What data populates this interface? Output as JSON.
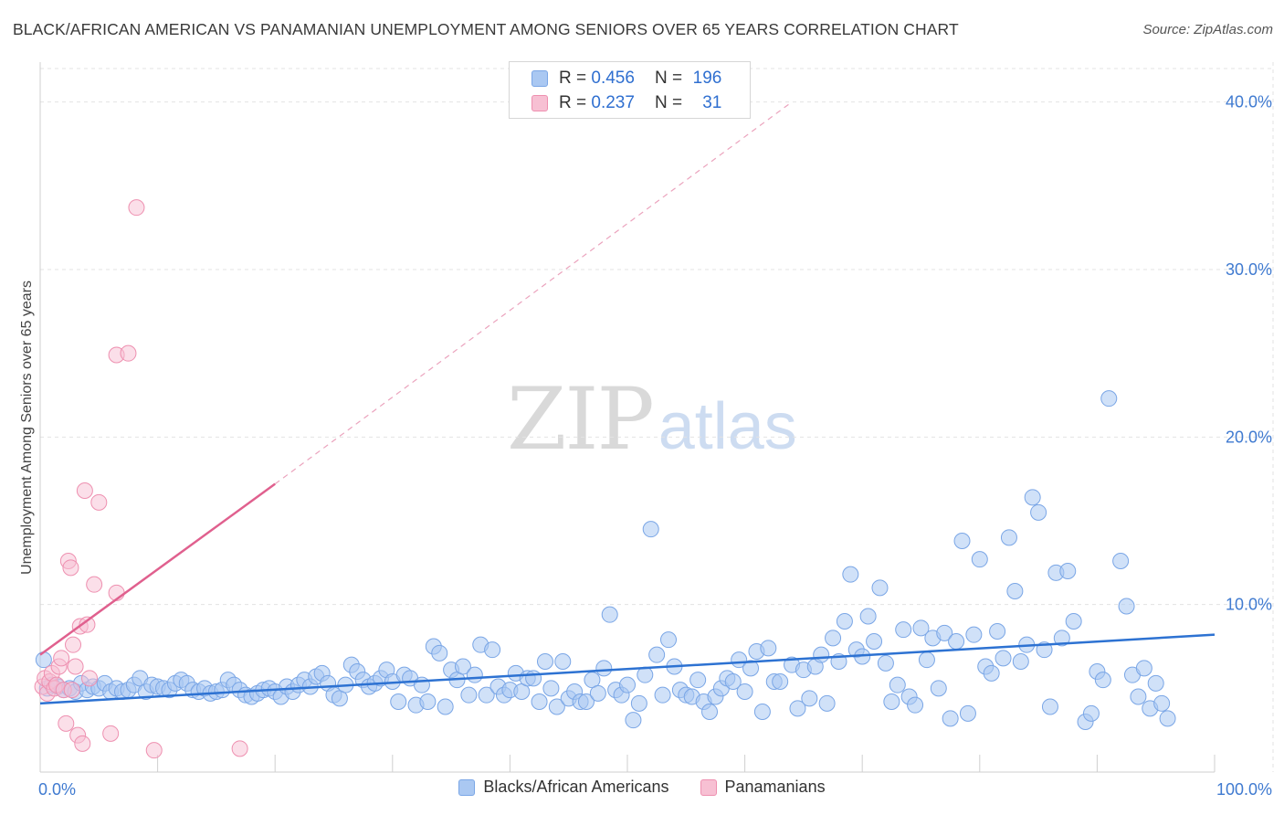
{
  "title": "BLACK/AFRICAN AMERICAN VS PANAMANIAN UNEMPLOYMENT AMONG SENIORS OVER 65 YEARS CORRELATION CHART",
  "source": "Source: ZipAtlas.com",
  "watermark": {
    "zip": "ZIP",
    "atlas": "atlas"
  },
  "stats": [
    {
      "r_label": "R =",
      "r_value": "0.456",
      "n_label": "N =",
      "n_value": "196"
    },
    {
      "r_label": "R =",
      "r_value": "0.237",
      "n_label": "N =",
      "n_value": "31"
    }
  ],
  "colors": {
    "blue_fill": "#aac8f2",
    "blue_stroke": "#7aa6e6",
    "blue_line": "#2d72d2",
    "pink_fill": "#f7c0d3",
    "pink_stroke": "#ee90b0",
    "pink_line": "#e0608e",
    "grid": "#e3e3e3",
    "axis_text": "#3f7ad0"
  },
  "chart_data": {
    "type": "scatter",
    "title": "BLACK/AFRICAN AMERICAN VS PANAMANIAN UNEMPLOYMENT AMONG SENIORS OVER 65 YEARS CORRELATION CHART",
    "xlabel": "",
    "ylabel": "Unemployment Among Seniors over 65 years",
    "xlim": [
      0,
      100
    ],
    "ylim": [
      0,
      42
    ],
    "x_tick_labels": [
      "0.0%",
      "100.0%"
    ],
    "y_ticks": [
      10,
      20,
      30,
      40
    ],
    "y_tick_labels": [
      "10.0%",
      "20.0%",
      "30.0%",
      "40.0%"
    ],
    "grid": true,
    "legend_position": "bottom",
    "series": [
      {
        "name": "Blacks/African Americans",
        "color": "#aac8f2",
        "trend": {
          "x": [
            0,
            100
          ],
          "y": [
            4.1,
            8.2
          ],
          "style": "solid"
        },
        "points": [
          [
            0.3,
            6.7
          ],
          [
            0.6,
            5.0
          ],
          [
            1,
            5.2
          ],
          [
            1.5,
            5.1
          ],
          [
            2,
            4.9
          ],
          [
            2.5,
            5.0
          ],
          [
            3,
            4.8
          ],
          [
            3.5,
            5.3
          ],
          [
            4,
            4.9
          ],
          [
            4.5,
            5.1
          ],
          [
            5,
            5.0
          ],
          [
            5.5,
            5.3
          ],
          [
            6,
            4.8
          ],
          [
            6.5,
            5.0
          ],
          [
            7,
            4.8
          ],
          [
            7.5,
            4.9
          ],
          [
            8,
            5.2
          ],
          [
            8.5,
            5.6
          ],
          [
            9,
            4.8
          ],
          [
            9.5,
            5.2
          ],
          [
            10,
            5.1
          ],
          [
            10.5,
            5.0
          ],
          [
            11,
            4.9
          ],
          [
            11.5,
            5.3
          ],
          [
            12,
            5.5
          ],
          [
            12.5,
            5.3
          ],
          [
            13,
            4.9
          ],
          [
            13.5,
            4.8
          ],
          [
            14,
            5.0
          ],
          [
            14.5,
            4.7
          ],
          [
            15,
            4.8
          ],
          [
            15.5,
            4.9
          ],
          [
            16,
            5.5
          ],
          [
            16.5,
            5.2
          ],
          [
            17,
            4.9
          ],
          [
            17.5,
            4.6
          ],
          [
            18,
            4.5
          ],
          [
            18.5,
            4.7
          ],
          [
            19,
            4.9
          ],
          [
            19.5,
            5.0
          ],
          [
            20,
            4.8
          ],
          [
            20.5,
            4.5
          ],
          [
            21,
            5.1
          ],
          [
            21.5,
            4.8
          ],
          [
            22,
            5.2
          ],
          [
            22.5,
            5.5
          ],
          [
            23,
            5.1
          ],
          [
            23.5,
            5.7
          ],
          [
            24,
            5.9
          ],
          [
            24.5,
            5.3
          ],
          [
            25,
            4.6
          ],
          [
            25.5,
            4.4
          ],
          [
            26,
            5.2
          ],
          [
            26.5,
            6.4
          ],
          [
            27,
            6.0
          ],
          [
            27.5,
            5.5
          ],
          [
            28,
            5.1
          ],
          [
            28.5,
            5.3
          ],
          [
            29,
            5.6
          ],
          [
            29.5,
            6.1
          ],
          [
            30,
            5.4
          ],
          [
            30.5,
            4.2
          ],
          [
            31,
            5.8
          ],
          [
            31.5,
            5.6
          ],
          [
            32,
            4.0
          ],
          [
            32.5,
            5.2
          ],
          [
            33,
            4.2
          ],
          [
            33.5,
            7.5
          ],
          [
            34,
            7.1
          ],
          [
            34.5,
            3.9
          ],
          [
            35,
            6.1
          ],
          [
            35.5,
            5.5
          ],
          [
            36,
            6.3
          ],
          [
            36.5,
            4.6
          ],
          [
            37,
            5.8
          ],
          [
            37.5,
            7.6
          ],
          [
            38,
            4.6
          ],
          [
            38.5,
            7.3
          ],
          [
            39,
            5.1
          ],
          [
            39.5,
            4.6
          ],
          [
            40,
            4.9
          ],
          [
            40.5,
            5.9
          ],
          [
            41,
            4.8
          ],
          [
            41.5,
            5.6
          ],
          [
            42,
            5.6
          ],
          [
            42.5,
            4.2
          ],
          [
            43,
            6.6
          ],
          [
            43.5,
            5.0
          ],
          [
            44,
            3.9
          ],
          [
            44.5,
            6.6
          ],
          [
            45,
            4.4
          ],
          [
            45.5,
            4.8
          ],
          [
            46,
            4.2
          ],
          [
            46.5,
            4.2
          ],
          [
            47,
            5.5
          ],
          [
            47.5,
            4.7
          ],
          [
            48,
            6.2
          ],
          [
            48.5,
            9.4
          ],
          [
            49,
            4.9
          ],
          [
            49.5,
            4.6
          ],
          [
            50,
            5.2
          ],
          [
            50.5,
            3.1
          ],
          [
            51,
            4.1
          ],
          [
            51.5,
            5.8
          ],
          [
            52,
            14.5
          ],
          [
            52.5,
            7.0
          ],
          [
            53,
            4.6
          ],
          [
            53.5,
            7.9
          ],
          [
            54,
            6.3
          ],
          [
            54.5,
            4.9
          ],
          [
            55,
            4.6
          ],
          [
            55.5,
            4.5
          ],
          [
            56,
            5.5
          ],
          [
            56.5,
            4.2
          ],
          [
            57,
            3.6
          ],
          [
            57.5,
            4.5
          ],
          [
            58,
            5.0
          ],
          [
            58.5,
            5.6
          ],
          [
            59,
            5.4
          ],
          [
            59.5,
            6.7
          ],
          [
            60,
            4.8
          ],
          [
            60.5,
            6.2
          ],
          [
            61,
            7.2
          ],
          [
            61.5,
            3.6
          ],
          [
            62,
            7.4
          ],
          [
            62.5,
            5.4
          ],
          [
            63,
            5.4
          ],
          [
            64,
            6.4
          ],
          [
            64.5,
            3.8
          ],
          [
            65,
            6.1
          ],
          [
            65.5,
            4.4
          ],
          [
            66,
            6.3
          ],
          [
            66.5,
            7.0
          ],
          [
            67,
            4.1
          ],
          [
            67.5,
            8.0
          ],
          [
            68,
            6.6
          ],
          [
            68.5,
            9.0
          ],
          [
            69,
            11.8
          ],
          [
            69.5,
            7.3
          ],
          [
            70,
            6.9
          ],
          [
            70.5,
            9.3
          ],
          [
            71,
            7.8
          ],
          [
            71.5,
            11.0
          ],
          [
            72,
            6.5
          ],
          [
            72.5,
            4.2
          ],
          [
            73,
            5.2
          ],
          [
            73.5,
            8.5
          ],
          [
            74,
            4.5
          ],
          [
            74.5,
            4.0
          ],
          [
            75,
            8.6
          ],
          [
            75.5,
            6.7
          ],
          [
            76,
            8.0
          ],
          [
            76.5,
            5.0
          ],
          [
            77,
            8.3
          ],
          [
            77.5,
            3.2
          ],
          [
            78,
            7.8
          ],
          [
            78.5,
            13.8
          ],
          [
            79,
            3.5
          ],
          [
            79.5,
            8.2
          ],
          [
            80,
            12.7
          ],
          [
            80.5,
            6.3
          ],
          [
            81,
            5.9
          ],
          [
            81.5,
            8.4
          ],
          [
            82,
            6.8
          ],
          [
            82.5,
            14.0
          ],
          [
            83,
            10.8
          ],
          [
            83.5,
            6.6
          ],
          [
            84,
            7.6
          ],
          [
            84.5,
            16.4
          ],
          [
            85,
            15.5
          ],
          [
            85.5,
            7.3
          ],
          [
            86,
            3.9
          ],
          [
            86.5,
            11.9
          ],
          [
            87,
            8.0
          ],
          [
            87.5,
            12.0
          ],
          [
            88,
            9.0
          ],
          [
            89,
            3.0
          ],
          [
            89.5,
            3.5
          ],
          [
            90,
            6.0
          ],
          [
            90.5,
            5.5
          ],
          [
            91,
            22.3
          ],
          [
            92,
            12.6
          ],
          [
            92.5,
            9.9
          ],
          [
            93,
            5.8
          ],
          [
            93.5,
            4.5
          ],
          [
            94,
            6.2
          ],
          [
            94.5,
            3.8
          ],
          [
            95,
            5.3
          ],
          [
            95.5,
            4.1
          ],
          [
            96,
            3.2
          ]
        ]
      },
      {
        "name": "Panamanians",
        "color": "#f7c0d3",
        "trend": {
          "x": [
            0,
            20,
            64
          ],
          "y": [
            7.0,
            17.2,
            40.0
          ],
          "style": "solid-then-dashed"
        },
        "points": [
          [
            0.2,
            5.1
          ],
          [
            0.4,
            5.6
          ],
          [
            0.6,
            4.7
          ],
          [
            0.8,
            5.4
          ],
          [
            1,
            5.9
          ],
          [
            1.2,
            5.0
          ],
          [
            1.4,
            5.2
          ],
          [
            1.6,
            6.3
          ],
          [
            1.8,
            6.8
          ],
          [
            2,
            4.9
          ],
          [
            2.2,
            2.9
          ],
          [
            2.4,
            12.6
          ],
          [
            2.6,
            12.2
          ],
          [
            2.8,
            7.6
          ],
          [
            3,
            6.3
          ],
          [
            3.2,
            2.2
          ],
          [
            3.4,
            8.7
          ],
          [
            3.6,
            1.7
          ],
          [
            3.8,
            16.8
          ],
          [
            4,
            8.8
          ],
          [
            4.2,
            5.6
          ],
          [
            4.6,
            11.2
          ],
          [
            5,
            16.1
          ],
          [
            6,
            2.3
          ],
          [
            6.5,
            10.7
          ],
          [
            6.5,
            24.9
          ],
          [
            7.5,
            25.0
          ],
          [
            8.2,
            33.7
          ],
          [
            9.7,
            1.3
          ],
          [
            17,
            1.4
          ],
          [
            2.7,
            4.9
          ]
        ]
      }
    ]
  }
}
